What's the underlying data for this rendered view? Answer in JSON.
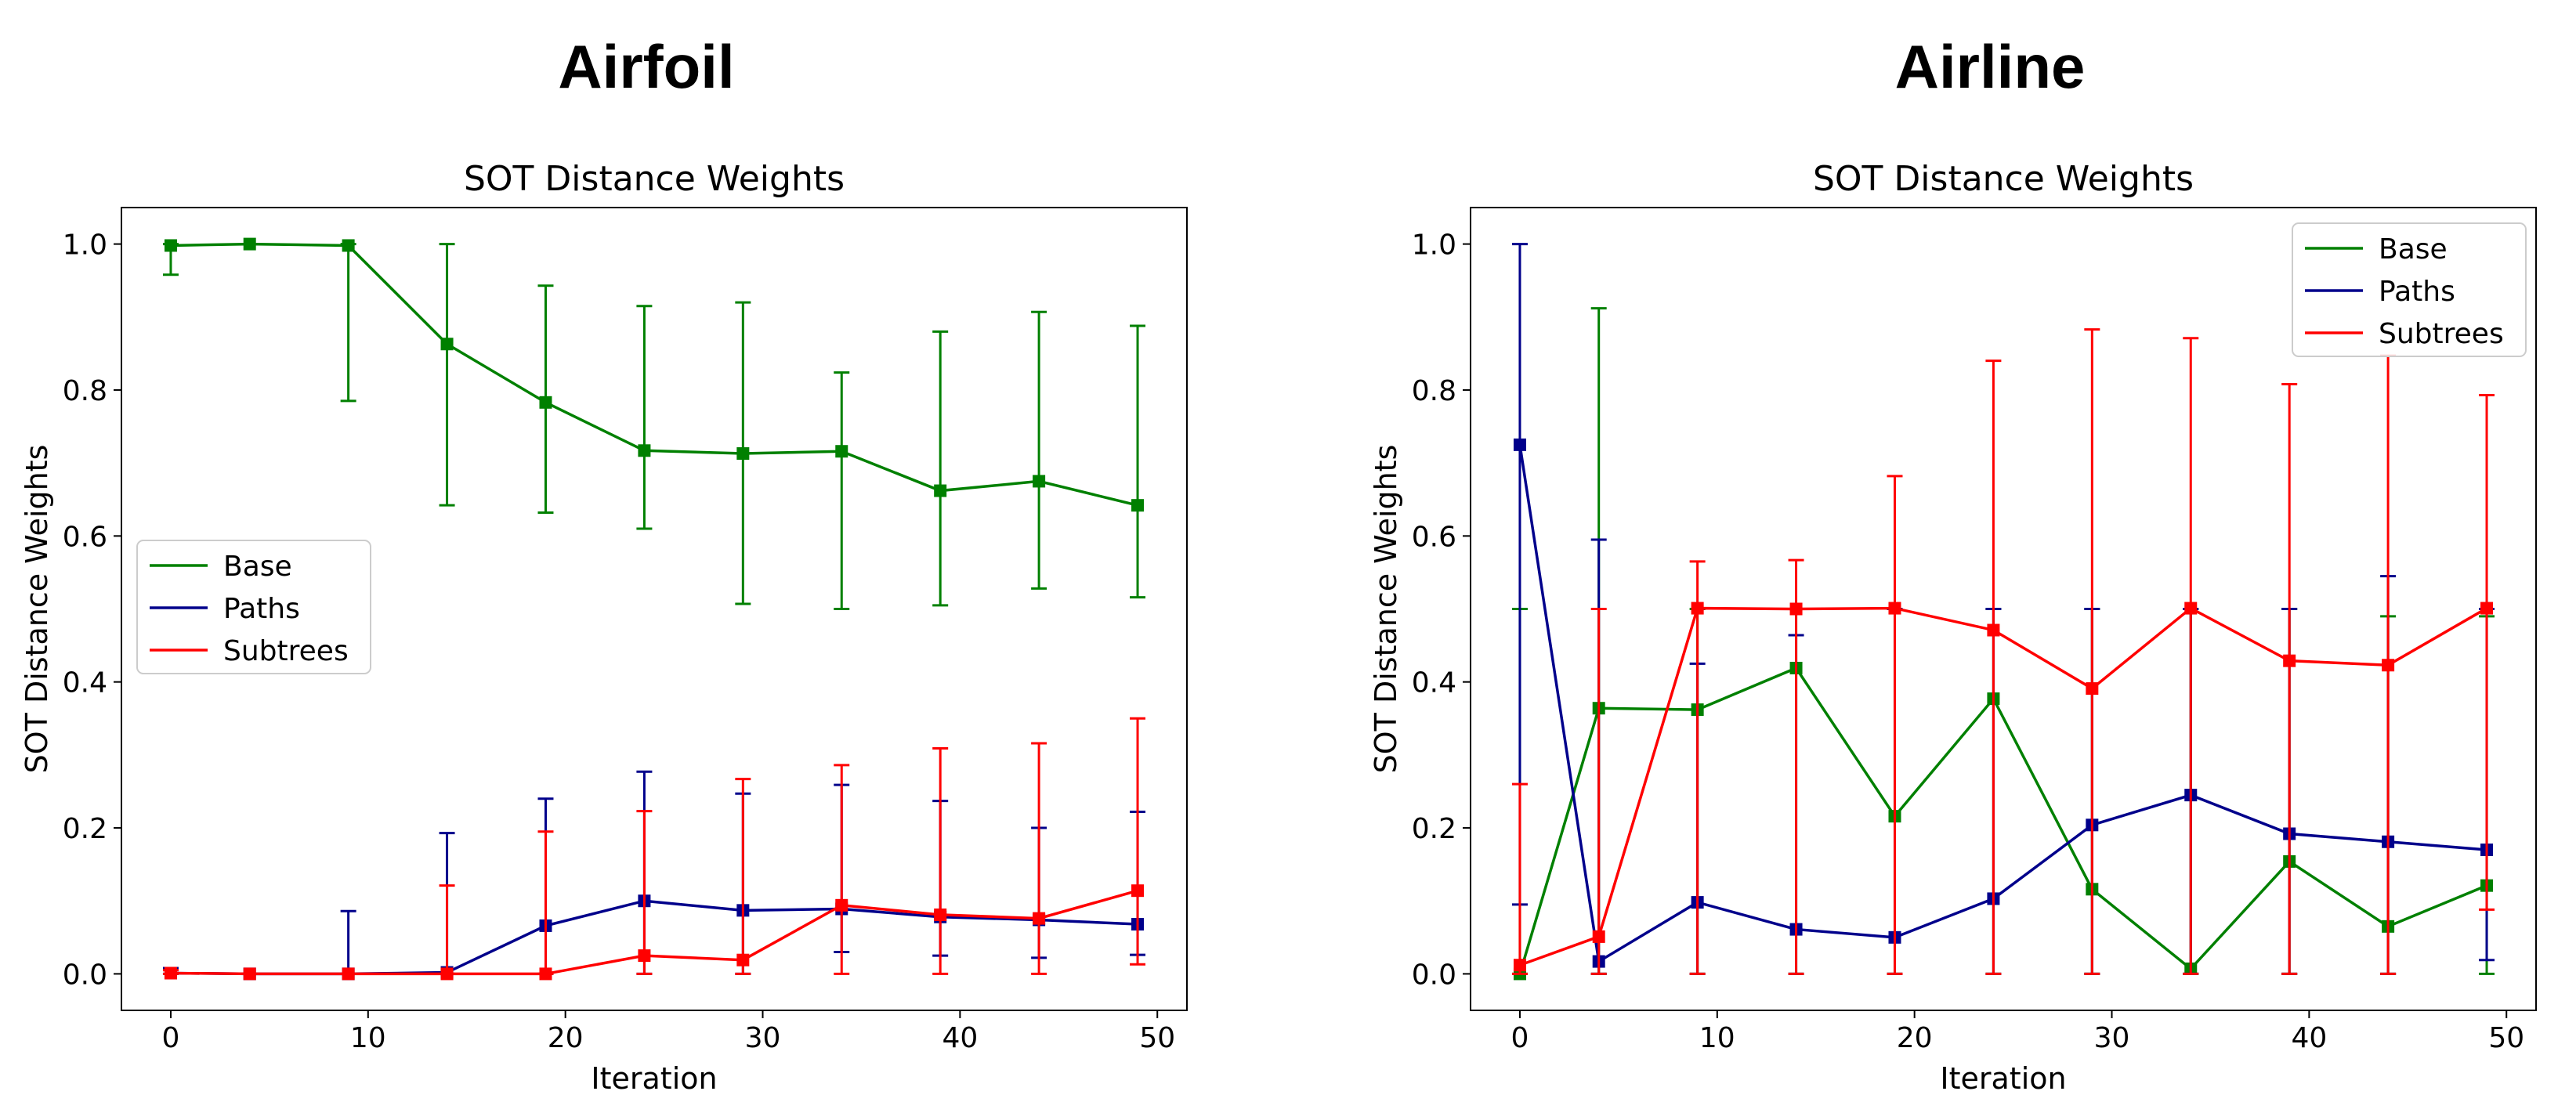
{
  "figure": {
    "panels": [
      {
        "heading": "Airfoil"
      },
      {
        "heading": "Airline"
      }
    ]
  },
  "chart_data": [
    {
      "type": "line",
      "title": "SOT Distance Weights",
      "xlabel": "Iteration",
      "ylabel": "SOT Distance Weights",
      "xlim": [
        -2.5,
        51.5
      ],
      "ylim": [
        -0.05,
        1.05
      ],
      "xticks": [
        0,
        10,
        20,
        30,
        40,
        50
      ],
      "yticks": [
        0.0,
        0.2,
        0.4,
        0.6,
        0.8,
        1.0
      ],
      "ytick_labels": [
        "0.0",
        "0.2",
        "0.4",
        "0.6",
        "0.8",
        "1.0"
      ],
      "legend_position": "center-left",
      "x": [
        0,
        4,
        9,
        14,
        19,
        24,
        29,
        34,
        39,
        44,
        49
      ],
      "series": [
        {
          "name": "Base",
          "color": "#008000",
          "values": [
            0.998,
            1.0,
            0.998,
            0.863,
            0.783,
            0.717,
            0.713,
            0.716,
            0.662,
            0.675,
            0.642
          ],
          "err_low": [
            0.958,
            1.0,
            0.785,
            0.642,
            0.632,
            0.61,
            0.507,
            0.5,
            0.505,
            0.528,
            0.516
          ],
          "err_high": [
            1.0,
            1.0,
            1.0,
            1.0,
            0.943,
            0.915,
            0.92,
            0.824,
            0.88,
            0.907,
            0.888
          ]
        },
        {
          "name": "Paths",
          "color": "#00008b",
          "values": [
            0.001,
            0.0,
            0.0,
            0.002,
            0.066,
            0.1,
            0.087,
            0.089,
            0.078,
            0.074,
            0.068
          ],
          "err_low": [
            0.0,
            0.0,
            0.0,
            0.0,
            0.0,
            0.0,
            0.0,
            0.03,
            0.025,
            0.022,
            0.026
          ],
          "err_high": [
            0.008,
            0.0,
            0.086,
            0.193,
            0.24,
            0.277,
            0.247,
            0.259,
            0.237,
            0.2,
            0.222
          ]
        },
        {
          "name": "Subtrees",
          "color": "#ff0000",
          "values": [
            0.001,
            0.0,
            0.0,
            0.0,
            0.0,
            0.025,
            0.019,
            0.094,
            0.081,
            0.076,
            0.114
          ],
          "err_low": [
            0.0,
            0.0,
            0.0,
            0.0,
            0.0,
            0.0,
            0.0,
            0.0,
            0.0,
            0.0,
            0.013
          ],
          "err_high": [
            0.005,
            0.0,
            0.0,
            0.121,
            0.195,
            0.223,
            0.267,
            0.286,
            0.309,
            0.316,
            0.35
          ]
        }
      ]
    },
    {
      "type": "line",
      "title": "SOT Distance Weights",
      "xlabel": "Iteration",
      "ylabel": "SOT Distance Weights",
      "xlim": [
        -2.5,
        51.5
      ],
      "ylim": [
        -0.05,
        1.05
      ],
      "xticks": [
        0,
        10,
        20,
        30,
        40,
        50
      ],
      "yticks": [
        0.0,
        0.2,
        0.4,
        0.6,
        0.8,
        1.0
      ],
      "ytick_labels": [
        "0.0",
        "0.2",
        "0.4",
        "0.6",
        "0.8",
        "1.0"
      ],
      "legend_position": "top-right",
      "x": [
        0,
        4,
        9,
        14,
        19,
        24,
        29,
        34,
        39,
        44,
        49
      ],
      "series": [
        {
          "name": "Base",
          "color": "#008000",
          "values": [
            0.0,
            0.364,
            0.362,
            0.419,
            0.216,
            0.377,
            0.116,
            0.007,
            0.154,
            0.065,
            0.121
          ],
          "err_low": [
            0.0,
            0.0,
            0.0,
            0.0,
            0.0,
            0.0,
            0.0,
            0.0,
            0.0,
            0.0,
            0.0
          ],
          "err_high": [
            0.5,
            0.912,
            0.5,
            0.5,
            0.5,
            0.5,
            0.5,
            0.5,
            0.5,
            0.49,
            0.49
          ]
        },
        {
          "name": "Paths",
          "color": "#00008b",
          "values": [
            0.725,
            0.017,
            0.098,
            0.061,
            0.05,
            0.103,
            0.204,
            0.245,
            0.192,
            0.181,
            0.17
          ],
          "err_low": [
            0.095,
            0.0,
            0.0,
            0.0,
            0.0,
            0.0,
            0.0,
            0.0,
            0.0,
            0.0,
            0.019
          ],
          "err_high": [
            1.0,
            0.595,
            0.425,
            0.464,
            0.5,
            0.5,
            0.5,
            0.5,
            0.5,
            0.545,
            0.5
          ]
        },
        {
          "name": "Subtrees",
          "color": "#ff0000",
          "values": [
            0.012,
            0.051,
            0.501,
            0.5,
            0.501,
            0.471,
            0.391,
            0.501,
            0.429,
            0.423,
            0.501
          ],
          "err_low": [
            0.0,
            0.0,
            0.0,
            0.0,
            0.0,
            0.0,
            0.0,
            0.0,
            0.0,
            0.0,
            0.088
          ],
          "err_high": [
            0.26,
            0.5,
            0.565,
            0.567,
            0.682,
            0.84,
            0.883,
            0.871,
            0.808,
            0.847,
            0.793
          ]
        }
      ]
    }
  ]
}
